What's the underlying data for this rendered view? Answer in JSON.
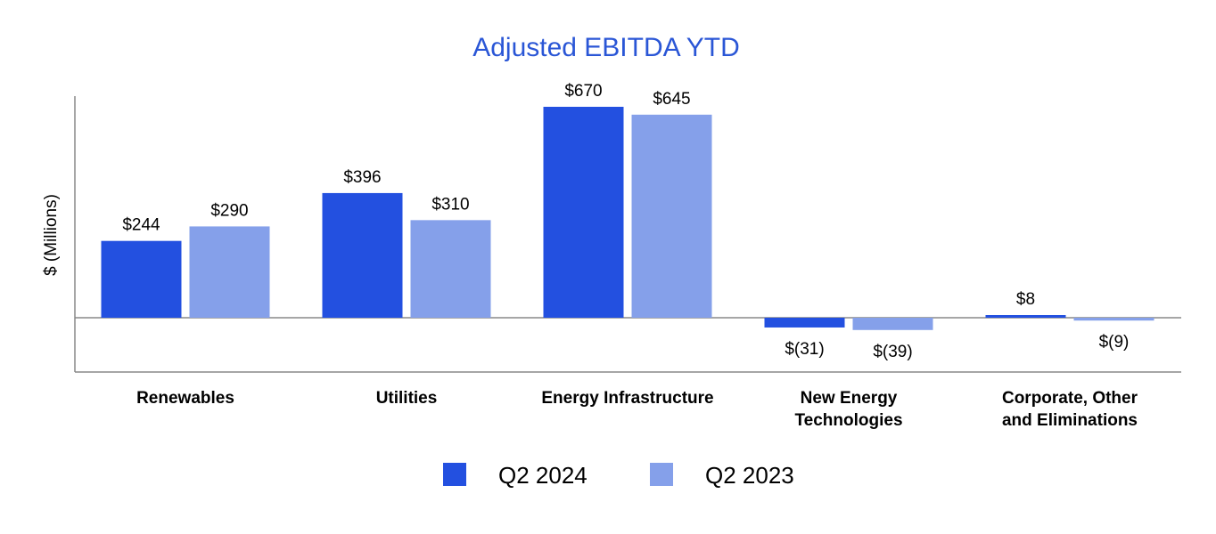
{
  "chart_data": {
    "type": "bar",
    "title": "Adjusted EBITDA YTD",
    "ylabel": "$ (Millions)",
    "xlabel": "",
    "categories": [
      [
        "Renewables"
      ],
      [
        "Utilities"
      ],
      [
        "Energy Infrastructure"
      ],
      [
        "New Energy",
        "Technologies"
      ],
      [
        "Corporate, Other",
        "and Eliminations"
      ]
    ],
    "series": [
      {
        "name": "Q2 2024",
        "color": "#2350e0",
        "values": [
          244,
          396,
          670,
          -31,
          8
        ],
        "labels": [
          "$244",
          "$396",
          "$670",
          "$(31)",
          "$8"
        ]
      },
      {
        "name": "Q2 2023",
        "color": "#85a0ea",
        "values": [
          290,
          310,
          645,
          -39,
          -9
        ],
        "labels": [
          "$290",
          "$310",
          "$645",
          "$(39)",
          "$(9)"
        ]
      }
    ],
    "ylim": [
      -170,
      700
    ],
    "grid": false,
    "legend": "bottom-center",
    "title_color": "#2a56d6",
    "axis_color": "#888888"
  }
}
